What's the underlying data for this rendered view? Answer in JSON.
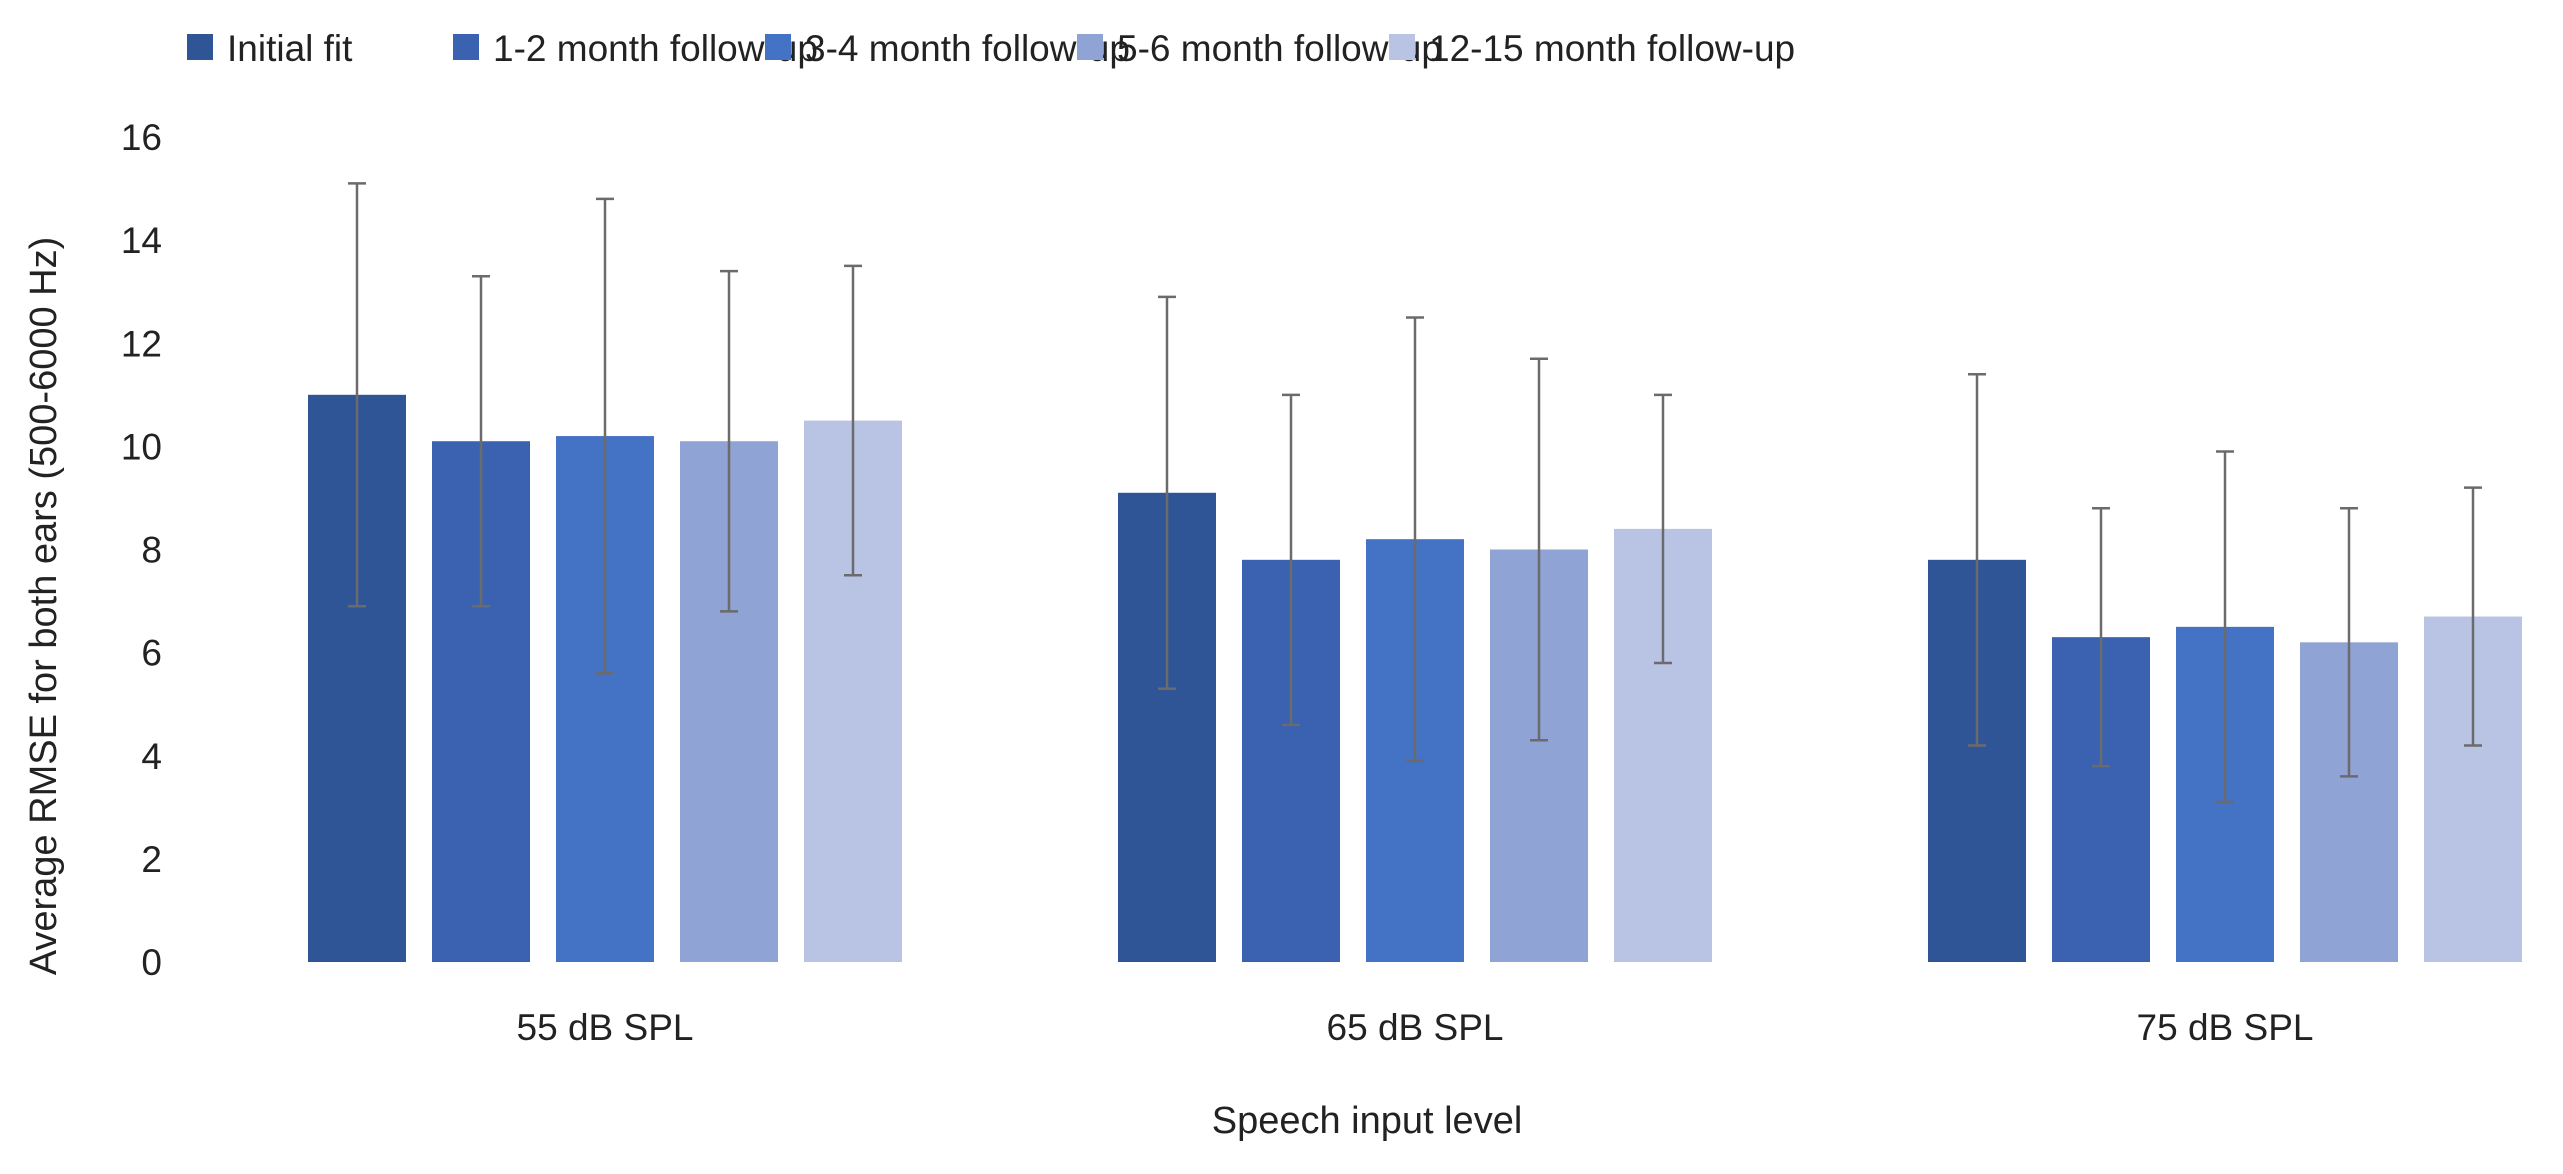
{
  "chart_data": {
    "type": "bar",
    "title": "",
    "xlabel": "Speech input level",
    "ylabel": "Average RMSE for both ears (500-6000 Hz)",
    "ylim": [
      0,
      16
    ],
    "yticks": [
      0,
      2,
      4,
      6,
      8,
      10,
      12,
      14,
      16
    ],
    "grid": false,
    "legend_position": "top",
    "categories": [
      "55 dB SPL",
      "65 dB SPL",
      "75 dB SPL"
    ],
    "series": [
      {
        "name": "Initial fit",
        "color": "#2f5597",
        "values": [
          11.0,
          9.1,
          7.8
        ],
        "error": [
          4.1,
          3.8,
          3.6
        ]
      },
      {
        "name": "1-2 month follow-up",
        "color": "#3a62b0",
        "values": [
          10.1,
          7.8,
          6.3
        ],
        "error": [
          3.2,
          3.2,
          2.5
        ]
      },
      {
        "name": "3-4 month follow-up",
        "color": "#4472c4",
        "values": [
          10.2,
          8.2,
          6.5
        ],
        "error": [
          4.6,
          4.3,
          3.4
        ]
      },
      {
        "name": "5-6 month follow-up",
        "color": "#8fa3d5",
        "values": [
          10.1,
          8.0,
          6.2
        ],
        "error": [
          3.3,
          3.7,
          2.6
        ]
      },
      {
        "name": "12-15 month follow-up",
        "color": "#b9c4e4",
        "values": [
          10.5,
          8.4,
          6.7
        ],
        "error": [
          3.0,
          2.6,
          2.5
        ]
      }
    ]
  }
}
